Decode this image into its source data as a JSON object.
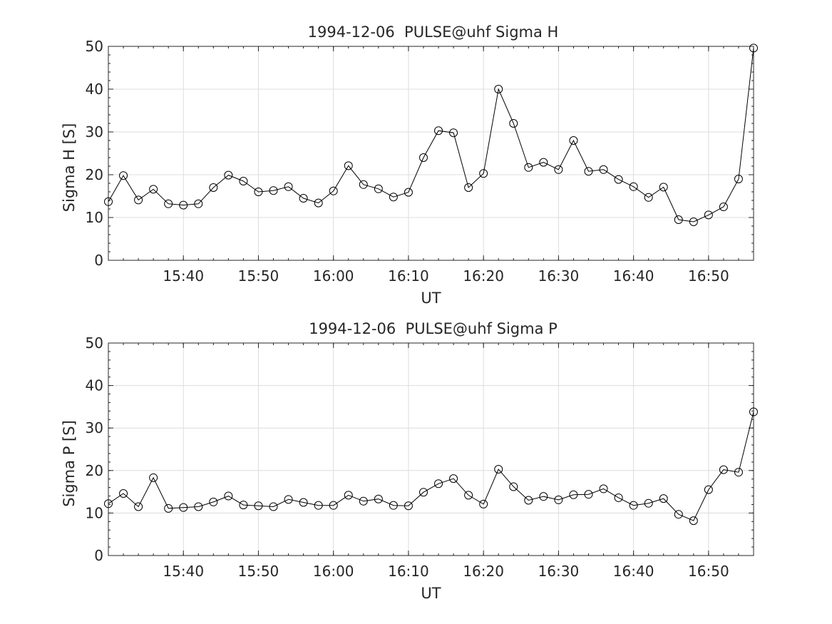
{
  "chart_data": [
    {
      "type": "line",
      "title": "1994-12-06  PULSE@uhf Sigma H",
      "xlabel": "UT",
      "ylabel": "Sigma H [S]",
      "ylim": [
        0,
        50
      ],
      "xlim": [
        "15:30",
        "16:56"
      ],
      "yticks": [
        "0",
        "10",
        "20",
        "30",
        "40",
        "50"
      ],
      "xticks": [
        "15:40",
        "15:50",
        "16:00",
        "16:10",
        "16:20",
        "16:30",
        "16:40",
        "16:50"
      ],
      "grid": true,
      "marker": "open-circle",
      "line_color": "#000000",
      "x": [
        "15:30",
        "15:32",
        "15:34",
        "15:36",
        "15:38",
        "15:40",
        "15:42",
        "15:44",
        "15:46",
        "15:48",
        "15:50",
        "15:52",
        "15:54",
        "15:56",
        "15:58",
        "16:00",
        "16:02",
        "16:04",
        "16:06",
        "16:08",
        "16:10",
        "16:12",
        "16:14",
        "16:16",
        "16:18",
        "16:20",
        "16:22",
        "16:24",
        "16:26",
        "16:28",
        "16:30",
        "16:32",
        "16:34",
        "16:36",
        "16:38",
        "16:40",
        "16:42",
        "16:44",
        "16:46",
        "16:48",
        "16:50",
        "16:52",
        "16:54",
        "16:56"
      ],
      "values": [
        13.7,
        19.8,
        14.1,
        16.6,
        13.2,
        12.9,
        13.2,
        17.0,
        19.9,
        18.5,
        16.0,
        16.3,
        17.2,
        14.5,
        13.4,
        16.2,
        22.1,
        17.7,
        16.7,
        14.8,
        15.9,
        24.0,
        30.3,
        29.8,
        17.0,
        20.3,
        40.0,
        32.0,
        21.7,
        22.9,
        21.2,
        28.0,
        20.8,
        21.2,
        18.9,
        17.2,
        14.7,
        17.1,
        9.5,
        9.0,
        10.6,
        12.5,
        19.0,
        49.6
      ]
    },
    {
      "type": "line",
      "title": "1994-12-06  PULSE@uhf Sigma P",
      "xlabel": "UT",
      "ylabel": "Sigma P [S]",
      "ylim": [
        0,
        50
      ],
      "xlim": [
        "15:30",
        "16:56"
      ],
      "yticks": [
        "0",
        "10",
        "20",
        "30",
        "40",
        "50"
      ],
      "xticks": [
        "15:40",
        "15:50",
        "16:00",
        "16:10",
        "16:20",
        "16:30",
        "16:40",
        "16:50"
      ],
      "grid": true,
      "marker": "open-circle",
      "line_color": "#000000",
      "x": [
        "15:30",
        "15:32",
        "15:34",
        "15:36",
        "15:38",
        "15:40",
        "15:42",
        "15:44",
        "15:46",
        "15:48",
        "15:50",
        "15:52",
        "15:54",
        "15:56",
        "15:58",
        "16:00",
        "16:02",
        "16:04",
        "16:06",
        "16:08",
        "16:10",
        "16:12",
        "16:14",
        "16:16",
        "16:18",
        "16:20",
        "16:22",
        "16:24",
        "16:26",
        "16:28",
        "16:30",
        "16:32",
        "16:34",
        "16:36",
        "16:38",
        "16:40",
        "16:42",
        "16:44",
        "16:46",
        "16:48",
        "16:50",
        "16:52",
        "16:54",
        "16:56"
      ],
      "values": [
        12.2,
        14.6,
        11.5,
        18.3,
        11.1,
        11.3,
        11.5,
        12.6,
        14.0,
        11.9,
        11.7,
        11.5,
        13.2,
        12.5,
        11.8,
        11.8,
        14.2,
        12.8,
        13.3,
        11.8,
        11.7,
        14.9,
        16.9,
        18.1,
        14.2,
        12.1,
        20.3,
        16.2,
        13.0,
        13.9,
        13.1,
        14.3,
        14.4,
        15.7,
        13.6,
        11.8,
        12.3,
        13.4,
        9.7,
        8.2,
        15.5,
        20.2,
        19.6,
        33.8
      ]
    }
  ]
}
